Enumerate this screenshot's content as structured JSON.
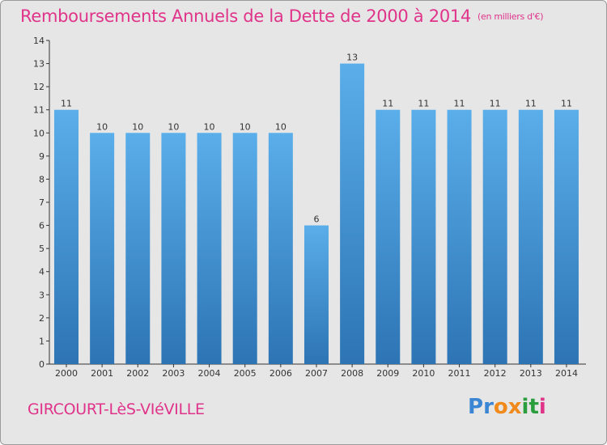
{
  "header": {
    "title": "Remboursements Annuels de la Dette de 2000 à 2014",
    "unit": "(en milliers d'€)"
  },
  "footer": {
    "place": "GIRCOURT-LèS-VIéVILLE",
    "brand": [
      "P",
      "r",
      "o",
      "x",
      "i",
      "t",
      "i"
    ]
  },
  "colors": {
    "accent": "#e0338a",
    "bar_top": "#5aaeea",
    "bar_bottom": "#2d74b4",
    "background": "#e6e6e6",
    "brand": [
      "#3a86d4",
      "#3a86d4",
      "#f08a1c",
      "#f08a1c",
      "#2a9d3c",
      "#2a9d3c",
      "#e0338a"
    ]
  },
  "chart_data": {
    "type": "bar",
    "title": "Remboursements Annuels de la Dette de 2000 à 2014",
    "xlabel": "",
    "ylabel": "",
    "categories": [
      "2000",
      "2001",
      "2002",
      "2003",
      "2004",
      "2005",
      "2006",
      "2007",
      "2008",
      "2009",
      "2010",
      "2011",
      "2012",
      "2013",
      "2014"
    ],
    "values": [
      11,
      10,
      10,
      10,
      10,
      10,
      10,
      6,
      13,
      11,
      11,
      11,
      11,
      11,
      11
    ],
    "ylim": [
      0,
      14
    ],
    "yticks": [
      0,
      1,
      2,
      3,
      4,
      5,
      6,
      7,
      8,
      9,
      10,
      11,
      12,
      13,
      14
    ],
    "grid": false,
    "legend": "none"
  }
}
